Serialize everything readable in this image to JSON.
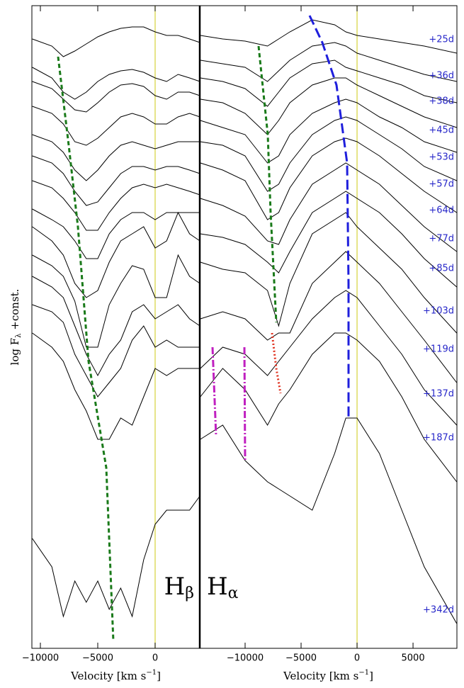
{
  "chart_data": [
    {
      "type": "line",
      "xlabel": "Velocity [km s",
      "xlabel_sup": "−1",
      "xlabel_end": "]",
      "ylabel": "log F",
      "ylabel_sub": "λ",
      "ylabel_end": " +const.",
      "annotation": "H",
      "annotation_sub": "β",
      "xlim": [
        -10740,
        3890
      ],
      "ylim": [
        0,
        907
      ],
      "xticks": [
        {
          "value": -10000,
          "label": "−10000"
        },
        {
          "value": -5000,
          "label": "−5000"
        },
        0
      ],
      "ref_line": {
        "x": 0,
        "color": "#d6d23a"
      },
      "x": [
        -10700,
        -9000,
        -8000,
        -7000,
        -6000,
        -5000,
        -4000,
        -3000,
        -2000,
        -1000,
        0,
        1000,
        2000,
        3000,
        3900
      ],
      "series": [
        {
          "color": "#000",
          "values": [
            860,
            850,
            835,
            843,
            853,
            863,
            870,
            875,
            877,
            877,
            870,
            865,
            865,
            860,
            855
          ]
        },
        {
          "color": "#000",
          "values": [
            820,
            805,
            785,
            775,
            785,
            800,
            810,
            815,
            817,
            813,
            805,
            800,
            810,
            805,
            800
          ]
        },
        {
          "color": "#000",
          "values": [
            800,
            790,
            775,
            760,
            757,
            770,
            785,
            795,
            797,
            793,
            780,
            775,
            785,
            785,
            780
          ]
        },
        {
          "color": "#000",
          "values": [
            765,
            755,
            740,
            715,
            710,
            720,
            735,
            750,
            755,
            750,
            740,
            740,
            750,
            755,
            750
          ]
        },
        {
          "color": "#000",
          "values": [
            725,
            715,
            700,
            675,
            660,
            675,
            695,
            710,
            715,
            710,
            705,
            710,
            715,
            715,
            715
          ]
        },
        {
          "color": "#000",
          "values": [
            695,
            685,
            670,
            645,
            625,
            630,
            650,
            670,
            680,
            680,
            675,
            680,
            680,
            675,
            670
          ]
        },
        {
          "color": "#000",
          "values": [
            660,
            650,
            635,
            615,
            590,
            590,
            615,
            635,
            650,
            655,
            650,
            655,
            650,
            645,
            640
          ]
        },
        {
          "color": "#000",
          "values": [
            620,
            605,
            595,
            575,
            550,
            550,
            585,
            605,
            615,
            615,
            605,
            615,
            615,
            615,
            615
          ]
        },
        {
          "color": "#000",
          "values": [
            595,
            575,
            555,
            515,
            495,
            505,
            545,
            575,
            585,
            595,
            565,
            575,
            615,
            585,
            575
          ]
        },
        {
          "color": "#000",
          "values": [
            555,
            540,
            525,
            490,
            425,
            425,
            485,
            515,
            540,
            535,
            495,
            495,
            555,
            525,
            515
          ]
        },
        {
          "color": "#000",
          "values": [
            525,
            510,
            495,
            455,
            415,
            385,
            415,
            435,
            475,
            485,
            465,
            475,
            485,
            465,
            455
          ]
        },
        {
          "color": "#000",
          "values": [
            485,
            475,
            460,
            415,
            385,
            355,
            375,
            395,
            435,
            455,
            425,
            435,
            425,
            425,
            425
          ]
        },
        {
          "color": "#000",
          "values": [
            445,
            425,
            405,
            365,
            335,
            295,
            295,
            325,
            315,
            355,
            395,
            385,
            395,
            395,
            395
          ]
        },
        {
          "color": "#000",
          "values": [
            155,
            115,
            45,
            95,
            65,
            95,
            55,
            85,
            45,
            125,
            175,
            195,
            195,
            195,
            215
          ]
        }
      ],
      "tracks": [
        {
          "color": "#1a7a1a",
          "dash": "6 4",
          "x": [
            -8457,
            -7531,
            -6728,
            -5802,
            -4259,
            -3642
          ],
          "values": [
            835,
            710,
            595,
            405,
            255,
            10
          ]
        }
      ]
    },
    {
      "type": "line",
      "xlabel": "Velocity [km s",
      "xlabel_sup": "−1",
      "xlabel_end": "]",
      "annotation": "H",
      "annotation_sub": "α",
      "xlim": [
        -14050,
        8920
      ],
      "ylim": [
        0,
        907
      ],
      "xticks": [
        {
          "value": -10000,
          "label": "−10000"
        },
        {
          "value": -5000,
          "label": "−5000"
        },
        0,
        5000
      ],
      "ref_line": {
        "x": 0,
        "color": "#d6d23a"
      },
      "x": [
        -14000,
        -12000,
        -10000,
        -8000,
        -7000,
        -6000,
        -4000,
        -2000,
        -1000,
        0,
        2000,
        4000,
        6000,
        8900
      ],
      "series": [
        {
          "name": "+25d",
          "color": "#000",
          "values": [
            865,
            860,
            857,
            850,
            860,
            870,
            887,
            880,
            870,
            865,
            860,
            855,
            850,
            840
          ]
        },
        {
          "name": "+36d",
          "color": "#000",
          "values": [
            830,
            825,
            820,
            800,
            815,
            830,
            850,
            855,
            850,
            840,
            830,
            820,
            810,
            800
          ]
        },
        {
          "name": "+38d",
          "color": "#000",
          "values": [
            805,
            800,
            790,
            765,
            785,
            805,
            825,
            830,
            820,
            815,
            805,
            795,
            780,
            770
          ]
        },
        {
          "name": "+45d",
          "color": "#000",
          "values": [
            775,
            770,
            755,
            725,
            745,
            770,
            795,
            805,
            805,
            795,
            780,
            765,
            750,
            735
          ]
        },
        {
          "name": "+53d",
          "color": "#000",
          "values": [
            745,
            735,
            725,
            685,
            695,
            725,
            755,
            770,
            775,
            770,
            750,
            735,
            715,
            700
          ]
        },
        {
          "name": "+57d",
          "color": "#000",
          "values": [
            715,
            710,
            695,
            645,
            655,
            685,
            725,
            745,
            750,
            745,
            725,
            705,
            680,
            660
          ]
        },
        {
          "name": "+64d",
          "color": "#000",
          "values": [
            685,
            675,
            660,
            605,
            615,
            650,
            695,
            715,
            720,
            715,
            695,
            670,
            645,
            615
          ]
        },
        {
          "name": "+77d",
          "color": "#000",
          "values": [
            635,
            625,
            610,
            575,
            570,
            605,
            655,
            675,
            685,
            675,
            655,
            625,
            595,
            560
          ]
        },
        {
          "name": "+85d",
          "color": "#000",
          "values": [
            585,
            580,
            570,
            545,
            530,
            560,
            615,
            635,
            645,
            635,
            615,
            585,
            550,
            510
          ]
        },
        {
          "name": "+103d",
          "color": "#000",
          "values": [
            545,
            535,
            530,
            505,
            455,
            515,
            585,
            605,
            615,
            595,
            565,
            535,
            495,
            445
          ]
        },
        {
          "name": "+119d",
          "color": "#000",
          "values": [
            465,
            475,
            465,
            435,
            445,
            445,
            515,
            545,
            560,
            545,
            515,
            475,
            435,
            375
          ]
        },
        {
          "name": "+137d",
          "color": "#000",
          "values": [
            395,
            425,
            415,
            385,
            405,
            425,
            465,
            495,
            505,
            495,
            455,
            415,
            365,
            315
          ]
        },
        {
          "name": "+187d",
          "color": "#000",
          "values": [
            355,
            395,
            365,
            315,
            345,
            365,
            415,
            445,
            445,
            435,
            405,
            355,
            295,
            235
          ]
        },
        {
          "name": "+342d",
          "color": "#000",
          "values": [
            295,
            315,
            265,
            235,
            225,
            215,
            195,
            275,
            325,
            325,
            275,
            195,
            115,
            35
          ]
        }
      ],
      "tracks": [
        {
          "color": "#1a7a1a",
          "dash": "6 4",
          "x": [
            -8797,
            -7975,
            -7722,
            -7215
          ],
          "values": [
            850,
            725,
            615,
            460
          ]
        },
        {
          "color": "#1f1fdc",
          "dash": "14 6",
          "x": [
            -4241,
            -3101,
            -1835,
            -886,
            -759,
            -759
          ],
          "values": [
            893,
            855,
            795,
            685,
            515,
            325
          ]
        },
        {
          "color": "#e0301e",
          "dash": "2 3",
          "x": [
            -7595,
            -7215,
            -6835
          ],
          "values": [
            445,
            395,
            360
          ]
        },
        {
          "color": "#c020c0",
          "dash": "10 3 2 3",
          "x": [
            -12911,
            -12595
          ],
          "values": [
            425,
            300
          ]
        },
        {
          "color": "#c020c0",
          "dash": "10 3 2 3",
          "x": [
            -10063,
            -10000
          ],
          "values": [
            425,
            265
          ]
        }
      ]
    }
  ]
}
